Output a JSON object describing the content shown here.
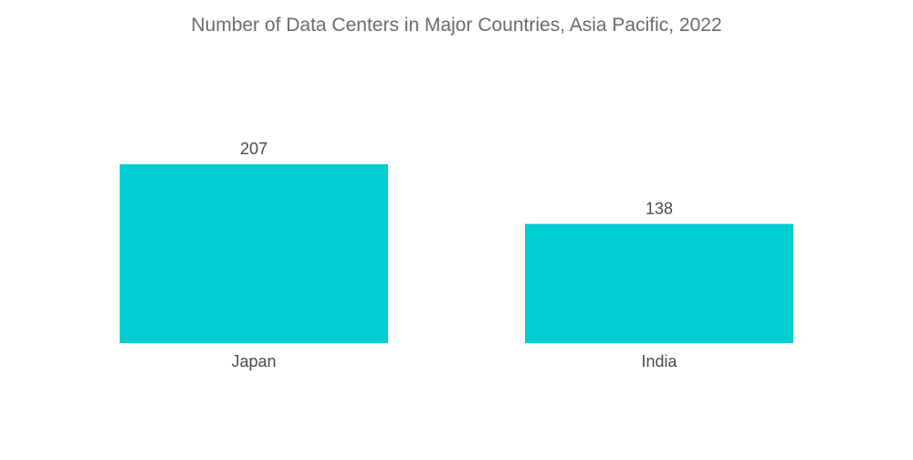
{
  "chart_data": {
    "type": "bar",
    "title": "Number of Data Centers in Major Countries, Asia Pacific, 2022",
    "categories": [
      "Japan",
      "India"
    ],
    "values": [
      207,
      138
    ],
    "xlabel": "",
    "ylabel": "",
    "ylim": [
      0,
      207
    ],
    "grid": false,
    "bar_color": "#00CED1"
  }
}
